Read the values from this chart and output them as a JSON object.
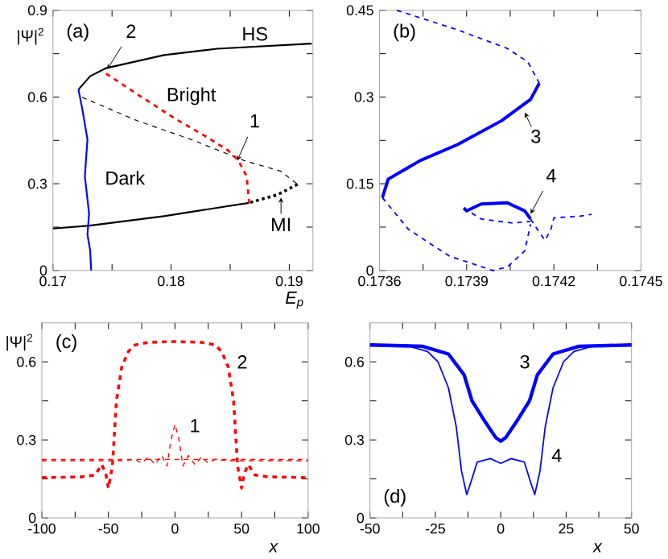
{
  "chart_data": [
    {
      "type": "line",
      "xlabel": "E$_{p}$",
      "ylabel": "|Ψ|$^{2}$",
      "xlim": [
        0.17,
        0.192
      ],
      "ylim": [
        0,
        0.9
      ],
      "xticks": [
        0.17,
        {
          "value": 0.175,
          "label": null
        },
        0.18,
        {
          "value": 0.185,
          "label": null
        },
        0.19
      ],
      "yticks": [
        0,
        {
          "value": 0.15,
          "label": null
        },
        0.3,
        {
          "value": 0.45,
          "label": null
        },
        0.6,
        {
          "value": 0.75,
          "label": null
        },
        0.9
      ],
      "series": [
        {
          "color": "#000000",
          "line_style": "solid",
          "x": [
            0.17216,
            0.17315,
            0.1745,
            0.1794,
            0.1839,
            0.1919
          ],
          "values": [
            0.626,
            0.672,
            0.7,
            0.745,
            0.767,
            0.785
          ]
        },
        {
          "color": "#000000",
          "line_style": "dashed",
          "x": [
            0.17247,
            0.1772,
            0.1817,
            0.1862,
            0.1893,
            0.1907
          ],
          "values": [
            0.599,
            0.517,
            0.453,
            0.38,
            0.343,
            0.298
          ]
        },
        {
          "color": "#000000",
          "line_style": "dotted",
          "x": [
            0.1907,
            0.189,
            0.1866
          ],
          "values": [
            0.298,
            0.262,
            0.234
          ]
        },
        {
          "color": "#000000",
          "line_style": "solid",
          "x": [
            0.1866,
            0.1794,
            0.1731,
            0.17
          ],
          "values": [
            0.234,
            0.188,
            0.155,
            0.145
          ]
        },
        {
          "color": "#ff0000",
          "line_style": "dashed",
          "x": [
            0.1745,
            0.1772,
            0.1803,
            0.183,
            0.1848,
            0.1857,
            0.1864,
            0.1866
          ],
          "values": [
            0.681,
            0.608,
            0.526,
            0.462,
            0.416,
            0.38,
            0.325,
            0.234
          ]
        },
        {
          "color": "#0000ff",
          "line_style": "solid",
          "x": [
            0.17216,
            0.17247,
            0.17292,
            0.1727,
            0.17306,
            0.17292,
            0.17315,
            0.17324
          ],
          "values": [
            0.626,
            0.562,
            0.453,
            0.325,
            0.197,
            0.124,
            0.069,
            0
          ]
        }
      ],
      "annotations": [
        "(a)",
        "HS",
        "Bright",
        "Dark",
        {
          "text": "1",
          "x": 0.1856,
          "y": 0.38
        },
        {
          "text": "2",
          "x": 0.1746,
          "y": 0.696
        },
        {
          "text": "MI",
          "x": 0.1893,
          "y": 0.252
        }
      ]
    },
    {
      "type": "line",
      "xlim": [
        0.1736,
        0.1745
      ],
      "ylim": [
        0,
        0.45
      ],
      "xticks": [
        0.1736,
        {
          "value": 0.17375,
          "label": null
        },
        0.1739,
        {
          "value": 0.17405,
          "label": null
        },
        0.1742,
        {
          "value": 0.17435,
          "label": null
        },
        0.1745
      ],
      "yticks": [
        0,
        {
          "value": 0.075,
          "label": null
        },
        0.15,
        {
          "value": 0.225,
          "label": null
        },
        0.3,
        {
          "value": 0.375,
          "label": null
        },
        0.45
      ],
      "series": [
        {
          "color": "#0000ff",
          "line_style": "dashed",
          "x": [
            0.17366,
            0.17387,
            0.17404,
            0.17411,
            0.17415
          ],
          "values": [
            0.45,
            0.416,
            0.384,
            0.361,
            0.324
          ]
        },
        {
          "color": "#0000ff",
          "line_style": "solid",
          "x": [
            0.17415,
            0.17412,
            0.17402,
            0.17387,
            0.17374,
            0.17363,
            0.17361
          ],
          "values": [
            0.324,
            0.296,
            0.259,
            0.218,
            0.19,
            0.158,
            0.126
          ]
        },
        {
          "color": "#0000ff",
          "line_style": "dashed",
          "x": [
            0.17361,
            0.1737,
            0.17384,
            0.17399,
            0.17404,
            0.1741,
            0.17412
          ],
          "values": [
            0.126,
            0.071,
            0.025,
            0,
            0.006,
            0.034,
            0.08
          ]
        },
        {
          "color": "#0000ff",
          "line_style": "solid",
          "x": [
            0.17389,
            0.1739,
            0.17395,
            0.17404,
            0.1741,
            0.17412
          ],
          "values": [
            0.108,
            0.103,
            0.115,
            0.117,
            0.103,
            0.089
          ]
        },
        {
          "color": "#0000ff",
          "line_style": "dashed",
          "x": [
            0.17389,
            0.17395,
            0.17406,
            0.17412
          ],
          "values": [
            0.108,
            0.089,
            0.082,
            0.085
          ]
        },
        {
          "color": "#0000ff",
          "line_style": "dashed",
          "x": [
            0.17412,
            0.17415,
            0.17417,
            0.17419,
            0.1742,
            0.17429,
            0.17433
          ],
          "values": [
            0.089,
            0.066,
            0.052,
            0.071,
            0.091,
            0.094,
            0.097
          ]
        }
      ],
      "annotations": [
        "(b)",
        {
          "text": "3",
          "x": 0.1741,
          "y": 0.273
        },
        {
          "text": "4",
          "x": 0.17412,
          "y": 0.098
        }
      ]
    },
    {
      "type": "line",
      "xlabel": "x",
      "ylabel": "|Ψ|$^{2}$",
      "xlim": [
        -100,
        100
      ],
      "ylim": [
        0,
        0.75
      ],
      "xticks": [
        -100,
        {
          "value": -75,
          "label": null
        },
        -50,
        {
          "value": -25,
          "label": null
        },
        0,
        {
          "value": 25,
          "label": null
        },
        50,
        {
          "value": 75,
          "label": null
        },
        100
      ],
      "yticks": [
        0,
        {
          "value": 0.15,
          "label": null
        },
        0.3,
        {
          "value": 0.45,
          "label": null
        },
        0.6
      ],
      "series": [
        {
          "color": "#ff0000",
          "line_style": "dashed",
          "x": [
            -100,
            -70,
            -60,
            -55,
            -52,
            -50,
            -47,
            -44,
            -40,
            -35,
            -30,
            -20,
            0,
            20,
            30,
            35,
            40,
            44,
            47,
            50,
            52,
            55,
            60,
            70,
            100
          ],
          "values": [
            0.155,
            0.158,
            0.165,
            0.205,
            0.17,
            0.115,
            0.2,
            0.45,
            0.58,
            0.64,
            0.665,
            0.675,
            0.678,
            0.675,
            0.665,
            0.64,
            0.58,
            0.45,
            0.2,
            0.115,
            0.17,
            0.205,
            0.165,
            0.158,
            0.155
          ]
        },
        {
          "color": "#ff0000",
          "line_style": "dashed",
          "x": [
            -100,
            -40,
            -30,
            -25,
            -20,
            -15,
            -10,
            -6,
            -3,
            0,
            3,
            6,
            10,
            15,
            20,
            25,
            30,
            40,
            100
          ],
          "values": [
            0.22,
            0.22,
            0.225,
            0.21,
            0.235,
            0.205,
            0.24,
            0.2,
            0.3,
            0.36,
            0.3,
            0.2,
            0.24,
            0.205,
            0.235,
            0.21,
            0.225,
            0.22,
            0.22
          ]
        }
      ],
      "ref_lines": [
        {
          "axis": "y",
          "value": 0.225,
          "color": "#ff0000",
          "line_style": "dashed"
        }
      ],
      "annotations": [
        "(c)",
        "2",
        "1"
      ]
    },
    {
      "type": "line",
      "xlabel": "x",
      "xlim": [
        -50,
        50
      ],
      "ylim": [
        0,
        0.75
      ],
      "xticks": [
        -50,
        {
          "value": -37.5,
          "label": null
        },
        -25,
        {
          "value": -12.5,
          "label": null
        },
        0,
        {
          "value": 12.5,
          "label": null
        },
        25,
        {
          "value": 37.5,
          "label": null
        },
        50
      ],
      "yticks": [
        0,
        {
          "value": 0.15,
          "label": null
        },
        0.3,
        {
          "value": 0.45,
          "label": null
        },
        0.6
      ],
      "series": [
        {
          "color": "#0000ff",
          "line_style": "solid",
          "x": [
            -50,
            -30,
            -20,
            -14,
            -11,
            -6,
            -2,
            0,
            2,
            6,
            11,
            14,
            20,
            30,
            50
          ],
          "values": [
            0.665,
            0.66,
            0.63,
            0.55,
            0.45,
            0.37,
            0.31,
            0.295,
            0.31,
            0.37,
            0.45,
            0.55,
            0.63,
            0.66,
            0.665
          ]
        },
        {
          "color": "#0000ff",
          "line_style": "solid",
          "x": [
            -50,
            -35,
            -28,
            -24,
            -20,
            -17,
            -15,
            -13,
            -11,
            -9,
            -4,
            0,
            4,
            9,
            11,
            13,
            15,
            17,
            20,
            24,
            28,
            35,
            50
          ],
          "values": [
            0.665,
            0.66,
            0.64,
            0.6,
            0.5,
            0.35,
            0.18,
            0.09,
            0.15,
            0.215,
            0.228,
            0.21,
            0.228,
            0.215,
            0.15,
            0.09,
            0.18,
            0.35,
            0.5,
            0.6,
            0.64,
            0.66,
            0.665
          ]
        }
      ],
      "annotations": [
        "(d)",
        "3",
        "4"
      ]
    }
  ]
}
